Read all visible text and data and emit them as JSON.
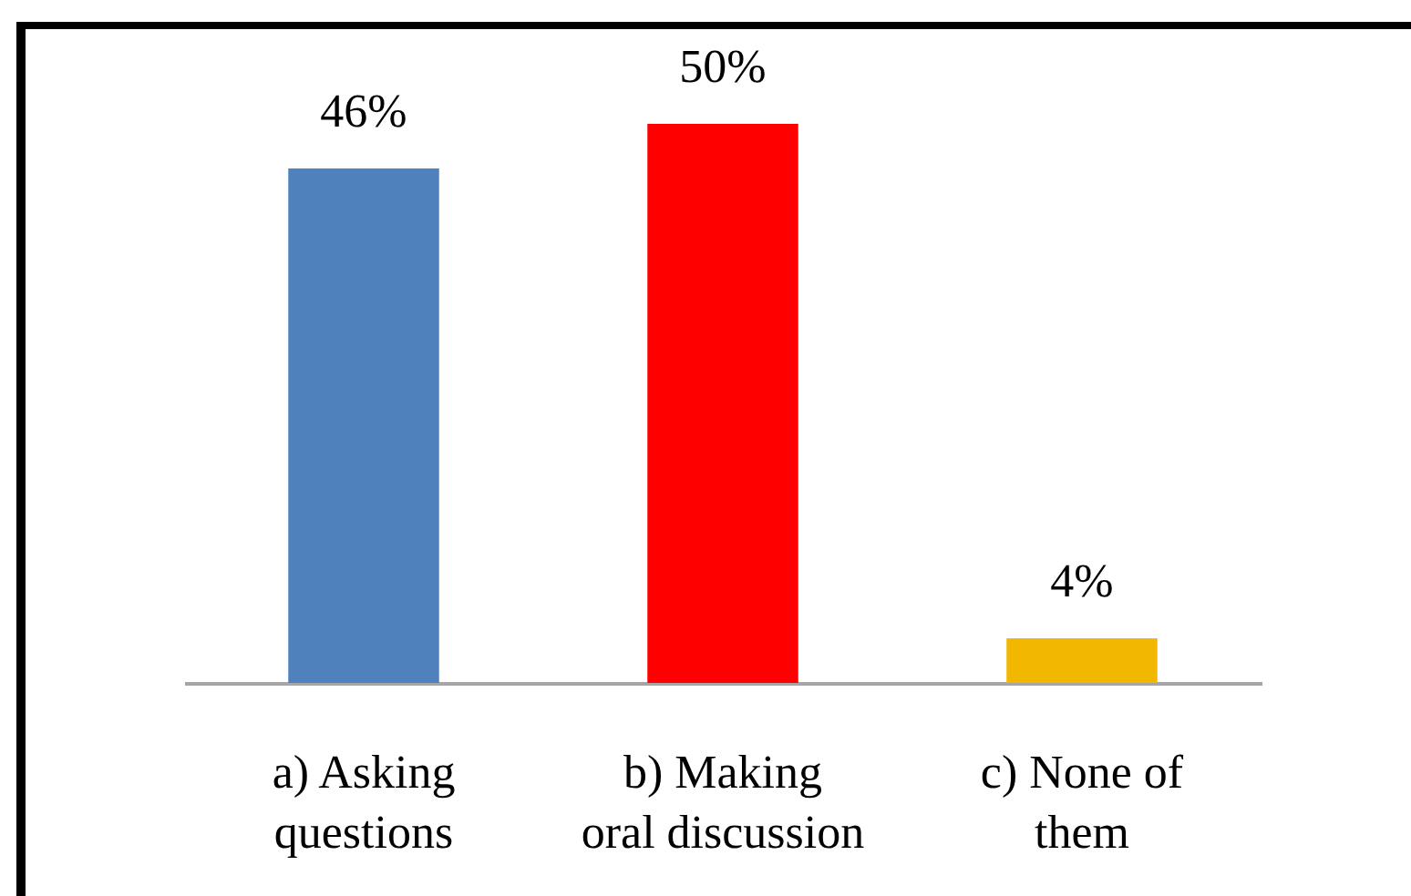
{
  "chart_data": {
    "type": "bar",
    "categories": [
      "a) Asking questions",
      "b) Making oral discussion",
      "c) None of them"
    ],
    "values": [
      46,
      50,
      4
    ],
    "colors": [
      "#4f81bd",
      "#ff0000",
      "#f2b700"
    ],
    "value_labels": [
      "46%",
      "50%",
      "4%"
    ],
    "tick_labels": "x",
    "legend": false
  }
}
